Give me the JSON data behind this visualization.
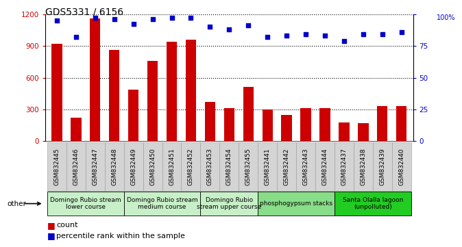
{
  "title": "GDS5331 / 6156",
  "samples": [
    "GSM832445",
    "GSM832446",
    "GSM832447",
    "GSM832448",
    "GSM832449",
    "GSM832450",
    "GSM832451",
    "GSM832452",
    "GSM832453",
    "GSM832454",
    "GSM832455",
    "GSM832441",
    "GSM832442",
    "GSM832443",
    "GSM832444",
    "GSM832437",
    "GSM832438",
    "GSM832439",
    "GSM832440"
  ],
  "counts": [
    920,
    220,
    1160,
    860,
    490,
    760,
    940,
    960,
    370,
    310,
    510,
    300,
    250,
    310,
    310,
    180,
    170,
    330,
    335
  ],
  "percentiles": [
    95,
    82,
    97,
    96,
    92,
    96,
    97,
    97,
    90,
    88,
    91,
    82,
    83,
    84,
    83,
    79,
    84,
    84,
    86
  ],
  "bar_color": "#cc0000",
  "dot_color": "#0000cc",
  "ylim_left": [
    0,
    1200
  ],
  "ylim_right": [
    0,
    100
  ],
  "yticks_left": [
    0,
    300,
    600,
    900,
    1200
  ],
  "yticks_right": [
    0,
    25,
    50,
    75,
    100
  ],
  "groups": [
    {
      "label": "Domingo Rubio stream\nlower course",
      "start": 0,
      "end": 4,
      "color": "#c8f0c8"
    },
    {
      "label": "Domingo Rubio stream\nmedium course",
      "start": 4,
      "end": 8,
      "color": "#c8f0c8"
    },
    {
      "label": "Domingo Rubio\nstream upper course",
      "start": 8,
      "end": 11,
      "color": "#c8f0c8"
    },
    {
      "label": "phosphogypsum stacks",
      "start": 11,
      "end": 15,
      "color": "#88dd88"
    },
    {
      "label": "Santa Olalla lagoon\n(unpolluted)",
      "start": 15,
      "end": 19,
      "color": "#22cc22"
    }
  ],
  "other_label": "other",
  "legend_count_label": "count",
  "legend_pct_label": "percentile rank within the sample",
  "bar_color_legend": "#cc0000",
  "dot_color_legend": "#0000cc",
  "tick_color_left": "#cc0000",
  "tick_color_right": "#0000cc",
  "title_fontsize": 10,
  "label_fontsize": 6.5,
  "group_label_fontsize": 6.5,
  "legend_fontsize": 8,
  "bar_width": 0.55
}
